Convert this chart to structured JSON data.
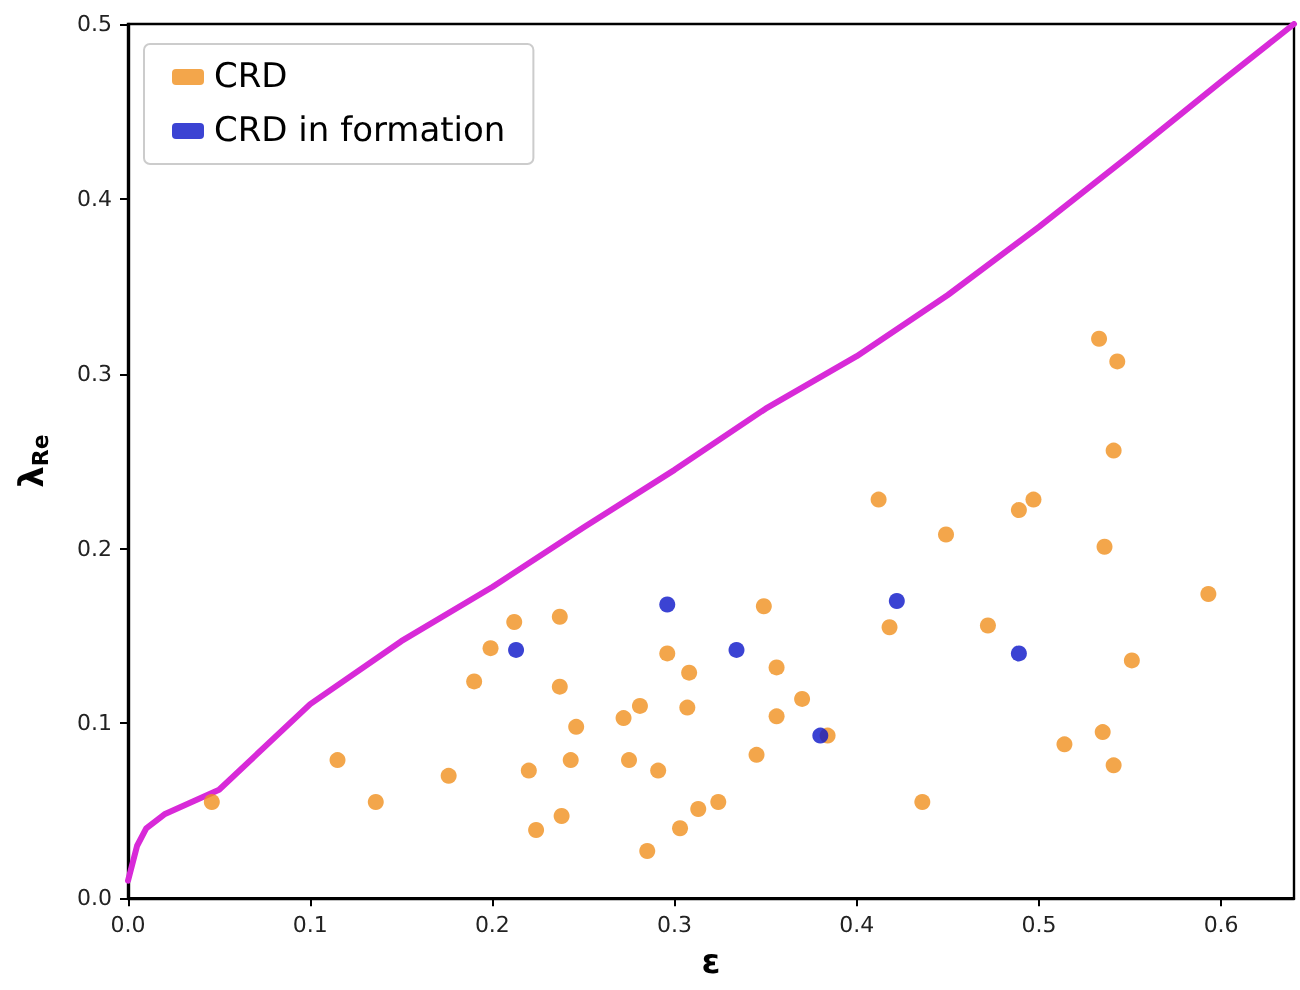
{
  "chart_data": {
    "type": "scatter",
    "xlabel": "ε",
    "ylabel": "λ$_{Re}$",
    "xlim": [
      0,
      0.64
    ],
    "ylim": [
      0,
      0.5
    ],
    "xticks": [
      {
        "value": 0,
        "label": "0.0"
      },
      0.1,
      0.2,
      0.3,
      0.4,
      0.5,
      0.6
    ],
    "yticks": [
      {
        "value": 0,
        "label": "0.0"
      },
      0.1,
      0.2,
      0.3,
      0.4,
      0.5
    ],
    "grid": false,
    "legend": "top left",
    "marker": "circle",
    "series": [
      {
        "type": "line",
        "marker": "none",
        "color": "#d82ad8",
        "x": [
          0,
          0.005,
          0.01,
          0.02,
          0.05,
          0.1,
          0.15,
          0.2,
          0.25,
          0.3,
          0.35,
          0.4,
          0.45,
          0.5,
          0.55,
          0.6,
          0.64
        ],
        "values": [
          0.01,
          0.03,
          0.04,
          0.048,
          0.062,
          0.111,
          0.147,
          0.178,
          0.212,
          0.245,
          0.28,
          0.31,
          0.345,
          0.384,
          0.425,
          0.467,
          0.5
        ]
      },
      {
        "name": "CRD",
        "color": "#f0901e",
        "x": [
          0.046,
          0.115,
          0.136,
          0.176,
          0.19,
          0.199,
          0.212,
          0.237,
          0.237,
          0.22,
          0.224,
          0.238,
          0.243,
          0.246,
          0.272,
          0.281,
          0.275,
          0.291,
          0.285,
          0.296,
          0.308,
          0.307,
          0.313,
          0.324,
          0.303,
          0.349,
          0.356,
          0.37,
          0.356,
          0.345,
          0.384,
          0.412,
          0.418,
          0.449,
          0.436,
          0.472,
          0.489,
          0.497,
          0.533,
          0.543,
          0.541,
          0.536,
          0.551,
          0.514,
          0.535,
          0.541,
          0.593
        ],
        "values": [
          0.055,
          0.079,
          0.055,
          0.07,
          0.124,
          0.143,
          0.158,
          0.161,
          0.121,
          0.073,
          0.039,
          0.047,
          0.079,
          0.098,
          0.103,
          0.11,
          0.079,
          0.073,
          0.027,
          0.14,
          0.129,
          0.109,
          0.051,
          0.055,
          0.04,
          0.167,
          0.132,
          0.114,
          0.104,
          0.082,
          0.093,
          0.228,
          0.155,
          0.208,
          0.055,
          0.156,
          0.222,
          0.228,
          0.32,
          0.307,
          0.256,
          0.201,
          0.136,
          0.088,
          0.095,
          0.076,
          0.174
        ]
      },
      {
        "name": "CRD in formation",
        "color": "#0a14c8",
        "x": [
          0.213,
          0.296,
          0.334,
          0.422,
          0.489,
          0.38
        ],
        "values": [
          0.142,
          0.168,
          0.142,
          0.17,
          0.14,
          0.093
        ]
      }
    ]
  }
}
